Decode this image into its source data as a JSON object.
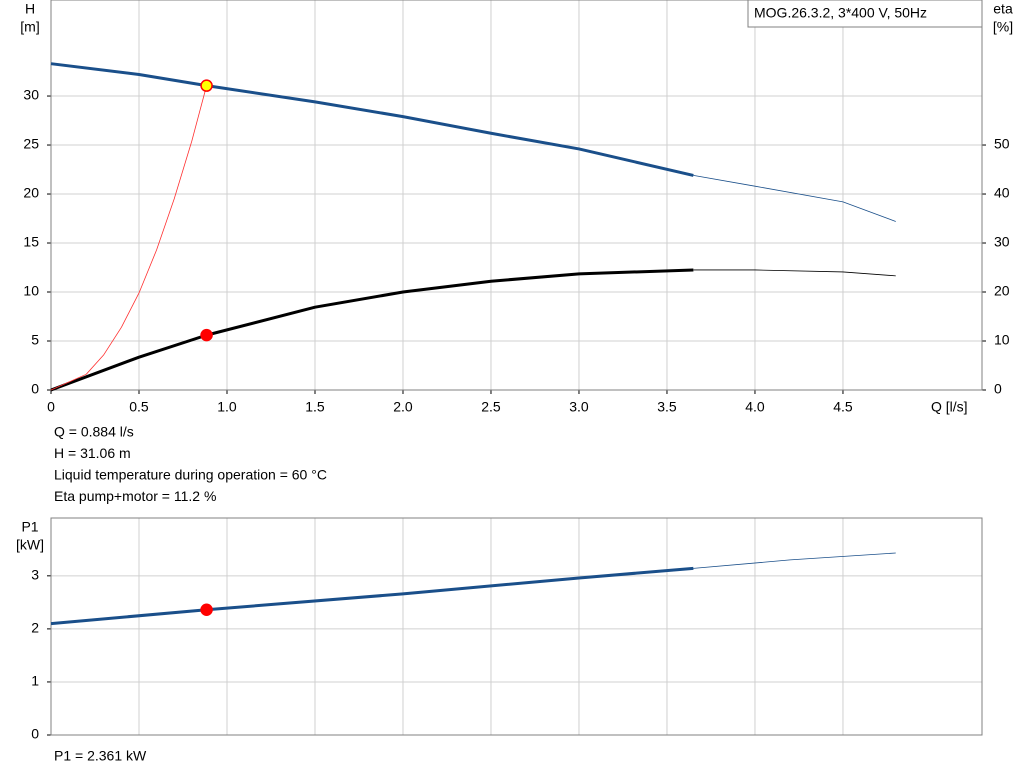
{
  "chart_data": [
    {
      "type": "line",
      "title": "MOG.26.3.2, 3*400 V, 50Hz",
      "y_label": [
        "H",
        "[m]"
      ],
      "y2_label": [
        "eta",
        "[%]"
      ],
      "x_label": "Q [l/s]",
      "xlim": [
        0,
        5.29
      ],
      "ylim": [
        0,
        39.8
      ],
      "y2lim": [
        0,
        79.6
      ],
      "xticks": [
        0,
        0.5,
        {
          "value": 1,
          "label": "1.0"
        },
        1.5,
        {
          "value": 2,
          "label": "2.0"
        },
        2.5,
        {
          "value": 3,
          "label": "3.0"
        },
        3.5,
        {
          "value": 4,
          "label": "4.0"
        },
        4.5
      ],
      "yticks": [
        0,
        5,
        10,
        15,
        20,
        25,
        30
      ],
      "y2ticks": [
        0,
        10,
        20,
        30,
        40,
        50
      ],
      "grid": true,
      "series": [
        {
          "color": "#1a4f8a",
          "style": "thick",
          "x": [
            0,
            0.5,
            0.884,
            1.5,
            2.0,
            2.5,
            3.0,
            3.65
          ],
          "values": [
            33.3,
            32.2,
            31.06,
            29.4,
            27.9,
            26.2,
            24.6,
            21.9
          ]
        },
        {
          "color": "#1a4f8a",
          "style": "thin",
          "x": [
            3.65,
            4.0,
            4.5,
            4.8
          ],
          "values": [
            21.9,
            20.8,
            19.2,
            17.2
          ]
        },
        {
          "color": "#000000",
          "style": "thick",
          "axis": "y2",
          "x": [
            0,
            0.5,
            0.884,
            1.5,
            2.0,
            2.5,
            3.0,
            3.65
          ],
          "values": [
            0,
            6.7,
            11.2,
            16.9,
            20.0,
            22.2,
            23.7,
            24.5
          ]
        },
        {
          "color": "#000000",
          "style": "thin",
          "axis": "y2",
          "x": [
            3.65,
            4.0,
            4.5,
            4.8
          ],
          "values": [
            24.5,
            24.5,
            24.1,
            23.3
          ]
        },
        {
          "color": "#ff3030",
          "style": "thin",
          "x": [
            0,
            0.2,
            0.3,
            0.4,
            0.5,
            0.6,
            0.7,
            0.8,
            0.884
          ],
          "values": [
            0,
            1.6,
            3.6,
            6.4,
            9.9,
            14.3,
            19.5,
            25.4,
            31.06
          ]
        }
      ],
      "points": [
        {
          "x": 0.884,
          "y": 31.06,
          "color": "#ffff00",
          "edge": "#ff0000"
        },
        {
          "x": 0.884,
          "y": 11.2,
          "axis": "y2",
          "color": "#ff0000",
          "edge": "#ff0000"
        }
      ],
      "notes": [
        "Q = 0.884 l/s",
        "H = 31.06 m",
        "Liquid temperature during operation = 60 °C",
        "Eta pump+motor = 11.2 %"
      ]
    },
    {
      "type": "line",
      "y_label": [
        "P1",
        "[kW]"
      ],
      "xlim": [
        0,
        5.29
      ],
      "ylim": [
        0,
        4.09
      ],
      "yticks": [
        0,
        1,
        2,
        3
      ],
      "grid": true,
      "series": [
        {
          "color": "#1a4f8a",
          "style": "thick",
          "x": [
            0,
            0.884,
            2.0,
            3.0,
            3.65
          ],
          "values": [
            2.1,
            2.361,
            2.66,
            2.96,
            3.14
          ]
        },
        {
          "color": "#1a4f8a",
          "style": "thin",
          "x": [
            3.65,
            4.2,
            4.8
          ],
          "values": [
            3.14,
            3.3,
            3.43
          ]
        }
      ],
      "points": [
        {
          "x": 0.884,
          "y": 2.361,
          "color": "#ff0000",
          "edge": "#ff0000"
        }
      ],
      "notes": [
        "P1 = 2.361 kW"
      ]
    }
  ]
}
